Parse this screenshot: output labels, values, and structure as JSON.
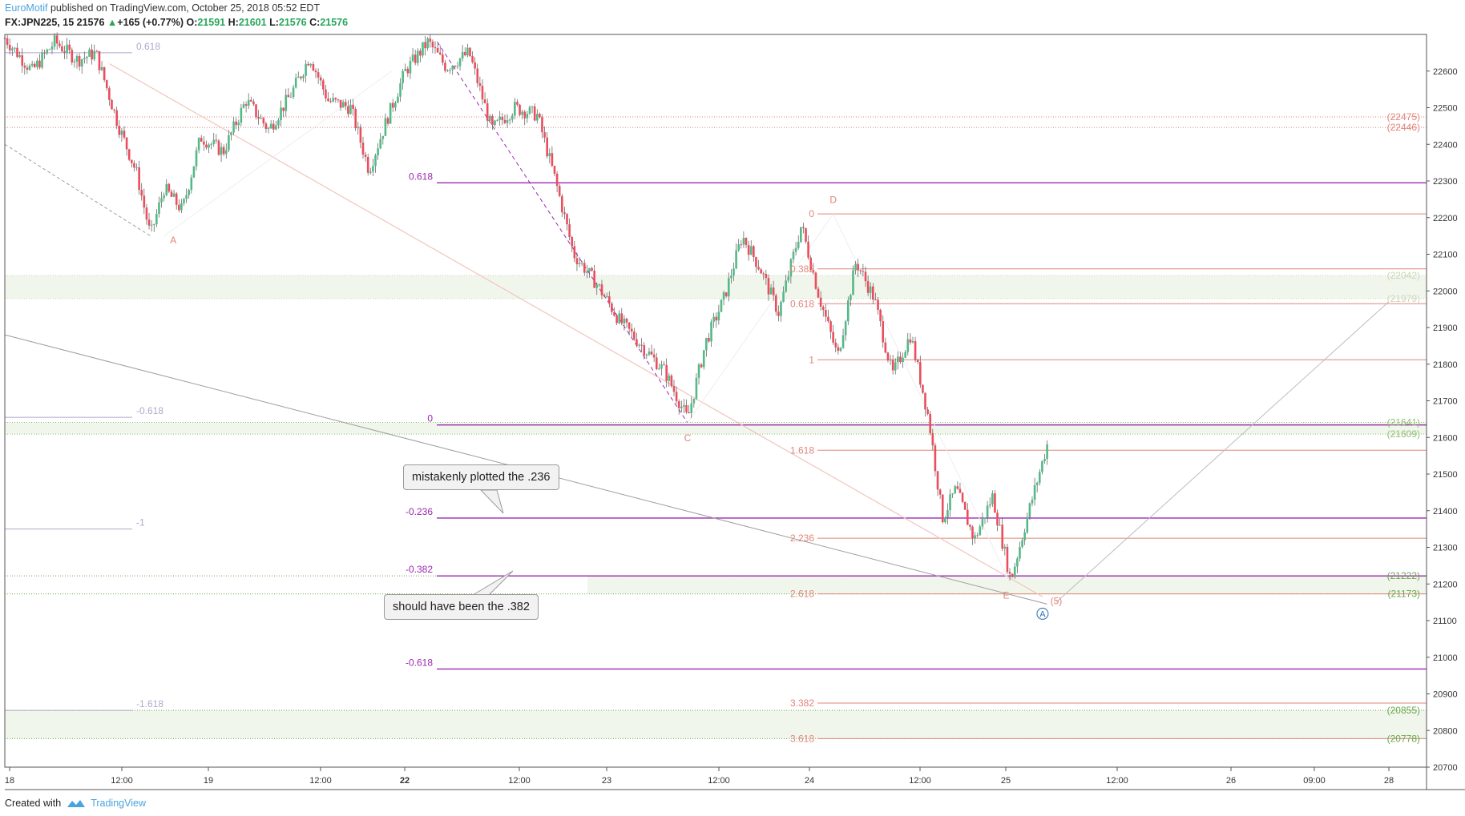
{
  "header": {
    "author": "EuroMotif",
    "published_text": "published on TradingView.com, October 25, 2018 05:52 EDT",
    "symbol": "FX:JPN225, 15",
    "last": "21576",
    "change": "+165 (+0.77%)",
    "open_label": "O:",
    "open": "21591",
    "high_label": "H:",
    "high": "21601",
    "low_label": "L:",
    "low": "21576",
    "close_label": "C:",
    "close": "21576"
  },
  "footer": {
    "created_with": "Created with",
    "brand": "TradingView"
  },
  "annotations": {
    "callout_236": "mistakenly plotted the .236",
    "callout_382": "should have been the .382"
  },
  "chart_data": {
    "type": "candlestick",
    "symbol": "FX:JPN225",
    "interval": "15",
    "ylim": [
      20700,
      22700
    ],
    "y_ticks": [
      20700,
      20800,
      20900,
      21000,
      21100,
      21200,
      21300,
      21400,
      21500,
      21600,
      21700,
      21800,
      21900,
      22000,
      22100,
      22200,
      22300,
      22400,
      22500,
      22600
    ],
    "x_ticks": [
      "18",
      "12:00",
      "19",
      "12:00",
      "22",
      "12:00",
      "23",
      "12:00",
      "24",
      "12:00",
      "25",
      "12:00",
      "26",
      "09:00",
      "28"
    ],
    "bold_x_ticks": [
      "22"
    ],
    "price_path": [
      {
        "t": 0.0,
        "p": 22690
      },
      {
        "t": 0.6,
        "p": 22600
      },
      {
        "t": 1.1,
        "p": 22680
      },
      {
        "t": 1.6,
        "p": 22630
      },
      {
        "t": 2.0,
        "p": 22650
      },
      {
        "t": 2.5,
        "p": 22450
      },
      {
        "t": 2.9,
        "p": 22320
      },
      {
        "t": 3.2,
        "p": 22150
      },
      {
        "t": 3.5,
        "p": 22280
      },
      {
        "t": 3.9,
        "p": 22220
      },
      {
        "t": 4.3,
        "p": 22420
      },
      {
        "t": 4.8,
        "p": 22380
      },
      {
        "t": 5.3,
        "p": 22520
      },
      {
        "t": 5.8,
        "p": 22440
      },
      {
        "t": 6.3,
        "p": 22540
      },
      {
        "t": 6.7,
        "p": 22640
      },
      {
        "t": 7.1,
        "p": 22520
      },
      {
        "t": 7.6,
        "p": 22500
      },
      {
        "t": 8.0,
        "p": 22330
      },
      {
        "t": 8.4,
        "p": 22470
      },
      {
        "t": 8.8,
        "p": 22600
      },
      {
        "t": 9.3,
        "p": 22680
      },
      {
        "t": 9.7,
        "p": 22610
      },
      {
        "t": 10.2,
        "p": 22650
      },
      {
        "t": 10.7,
        "p": 22440
      },
      {
        "t": 11.2,
        "p": 22500
      },
      {
        "t": 11.7,
        "p": 22480
      },
      {
        "t": 12.1,
        "p": 22300
      },
      {
        "t": 12.5,
        "p": 22100
      },
      {
        "t": 13.0,
        "p": 22020
      },
      {
        "t": 13.5,
        "p": 21920
      },
      {
        "t": 14.0,
        "p": 21850
      },
      {
        "t": 14.5,
        "p": 21780
      },
      {
        "t": 15.0,
        "p": 21650
      },
      {
        "t": 15.4,
        "p": 21860
      },
      {
        "t": 15.8,
        "p": 21980
      },
      {
        "t": 16.2,
        "p": 22150
      },
      {
        "t": 16.6,
        "p": 22060
      },
      {
        "t": 17.0,
        "p": 21940
      },
      {
        "t": 17.5,
        "p": 22180
      },
      {
        "t": 17.9,
        "p": 21980
      },
      {
        "t": 18.3,
        "p": 21820
      },
      {
        "t": 18.7,
        "p": 22080
      },
      {
        "t": 19.1,
        "p": 21980
      },
      {
        "t": 19.5,
        "p": 21770
      },
      {
        "t": 19.9,
        "p": 21880
      },
      {
        "t": 20.3,
        "p": 21650
      },
      {
        "t": 20.6,
        "p": 21380
      },
      {
        "t": 20.9,
        "p": 21460
      },
      {
        "t": 21.3,
        "p": 21320
      },
      {
        "t": 21.7,
        "p": 21440
      },
      {
        "t": 22.1,
        "p": 21210
      },
      {
        "t": 22.5,
        "p": 21400
      },
      {
        "t": 22.9,
        "p": 21580
      }
    ],
    "price_labels_right": [
      {
        "value": 22475,
        "text": "(22475)",
        "color": "#e0857a"
      },
      {
        "value": 22446,
        "text": "(22446)",
        "color": "#e0857a"
      },
      {
        "value": 22042,
        "text": "(22042)",
        "color": "#c9d8bb"
      },
      {
        "value": 21979,
        "text": "(21979)",
        "color": "#c9d8bb"
      },
      {
        "value": 21641,
        "text": "(21641)",
        "color": "#8fbf76"
      },
      {
        "value": 21609,
        "text": "(21609)",
        "color": "#8fbf76"
      },
      {
        "value": 21222,
        "text": "(21222)",
        "color": "#6aa84f"
      },
      {
        "value": 21173,
        "text": "(21173)",
        "color": "#6aa84f"
      },
      {
        "value": 20855,
        "text": "(20855)",
        "color": "#6aa84f"
      },
      {
        "value": 20778,
        "text": "(20778)",
        "color": "#6aa84f"
      }
    ],
    "fib_purple": [
      {
        "label": "0.618",
        "value": 22295
      },
      {
        "label": "0",
        "value": 21634
      },
      {
        "label": "-0.236",
        "value": 21380
      },
      {
        "label": "-0.382",
        "value": 21222
      },
      {
        "label": "-0.618",
        "value": 20968
      }
    ],
    "fib_left_gray": [
      {
        "label": "0.618",
        "value": 22650
      },
      {
        "label": "-0.618",
        "value": 21655
      },
      {
        "label": "-1",
        "value": 21350
      },
      {
        "label": "-1.618",
        "value": 20855
      }
    ],
    "fib_red_extension": [
      {
        "label": "0",
        "value": 22210
      },
      {
        "label": "0.382",
        "value": 22060
      },
      {
        "label": "0.618",
        "value": 21965
      },
      {
        "label": "1",
        "value": 21812
      },
      {
        "label": "1.618",
        "value": 21565
      },
      {
        "label": "2.236",
        "value": 21325
      },
      {
        "label": "2.618",
        "value": 21173
      },
      {
        "label": "3.382",
        "value": 20875
      },
      {
        "label": "3.618",
        "value": 20778
      }
    ],
    "wave_labels": [
      {
        "text": "A",
        "t": 3.7,
        "p": 22130
      },
      {
        "text": "C",
        "t": 15.0,
        "p": 21590
      },
      {
        "text": "D",
        "t": 18.2,
        "p": 22240
      },
      {
        "text": "E",
        "t": 22.0,
        "p": 21160
      },
      {
        "text": "(5)",
        "t": 23.1,
        "p": 21145
      },
      {
        "text": "A",
        "t": 22.8,
        "p": 21110
      }
    ]
  }
}
